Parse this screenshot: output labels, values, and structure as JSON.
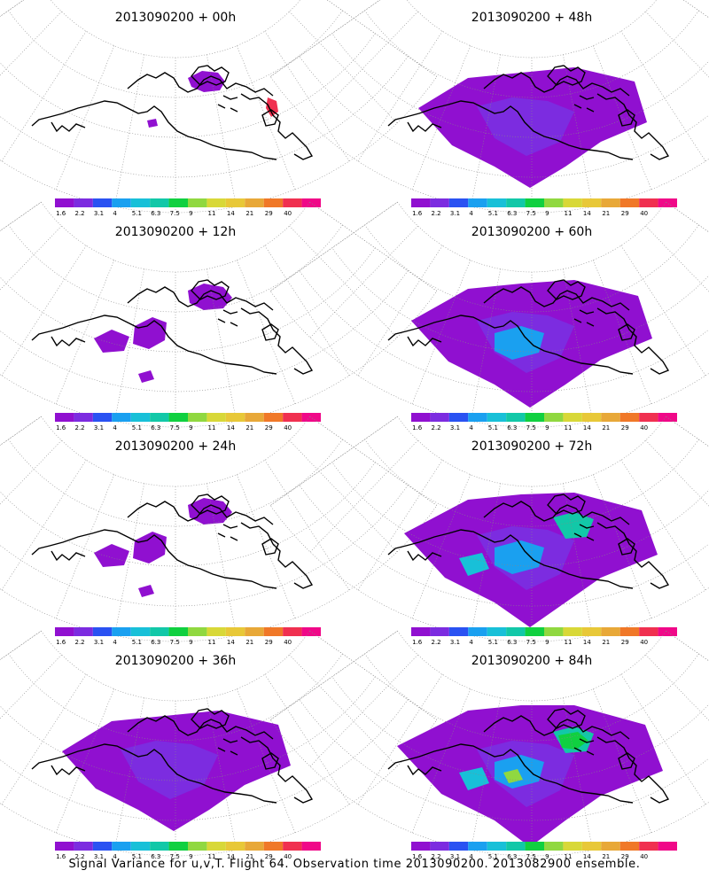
{
  "figure": {
    "caption": "Signal Variance for u,v,T. Flight 64. Observation time 2013090200. 2013082900 ensemble."
  },
  "colorbar": {
    "labels": [
      "1.6",
      "2.2",
      "3.1",
      "4",
      "5.1",
      "6.3",
      "7.5",
      "9",
      "11",
      "14",
      "21",
      "29",
      "40"
    ],
    "colors": [
      "#9010d0",
      "#7c2ce0",
      "#2a52f2",
      "#1aa0f0",
      "#18c0d8",
      "#12c8a8",
      "#10d040",
      "#90d840",
      "#d8d838",
      "#e8c838",
      "#e8a838",
      "#f07828",
      "#f03050",
      "#f00888"
    ]
  },
  "panels": [
    {
      "title": "2013090200 + 00h",
      "signal_level": 0
    },
    {
      "title": "2013090200 + 48h",
      "signal_level": 2
    },
    {
      "title": "2013090200 + 12h",
      "signal_level": 1
    },
    {
      "title": "2013090200 + 60h",
      "signal_level": 3
    },
    {
      "title": "2013090200 + 24h",
      "signal_level": 1
    },
    {
      "title": "2013090200 + 72h",
      "signal_level": 4
    },
    {
      "title": "2013090200 + 36h",
      "signal_level": 2
    },
    {
      "title": "2013090200 + 84h",
      "signal_level": 5
    }
  ]
}
